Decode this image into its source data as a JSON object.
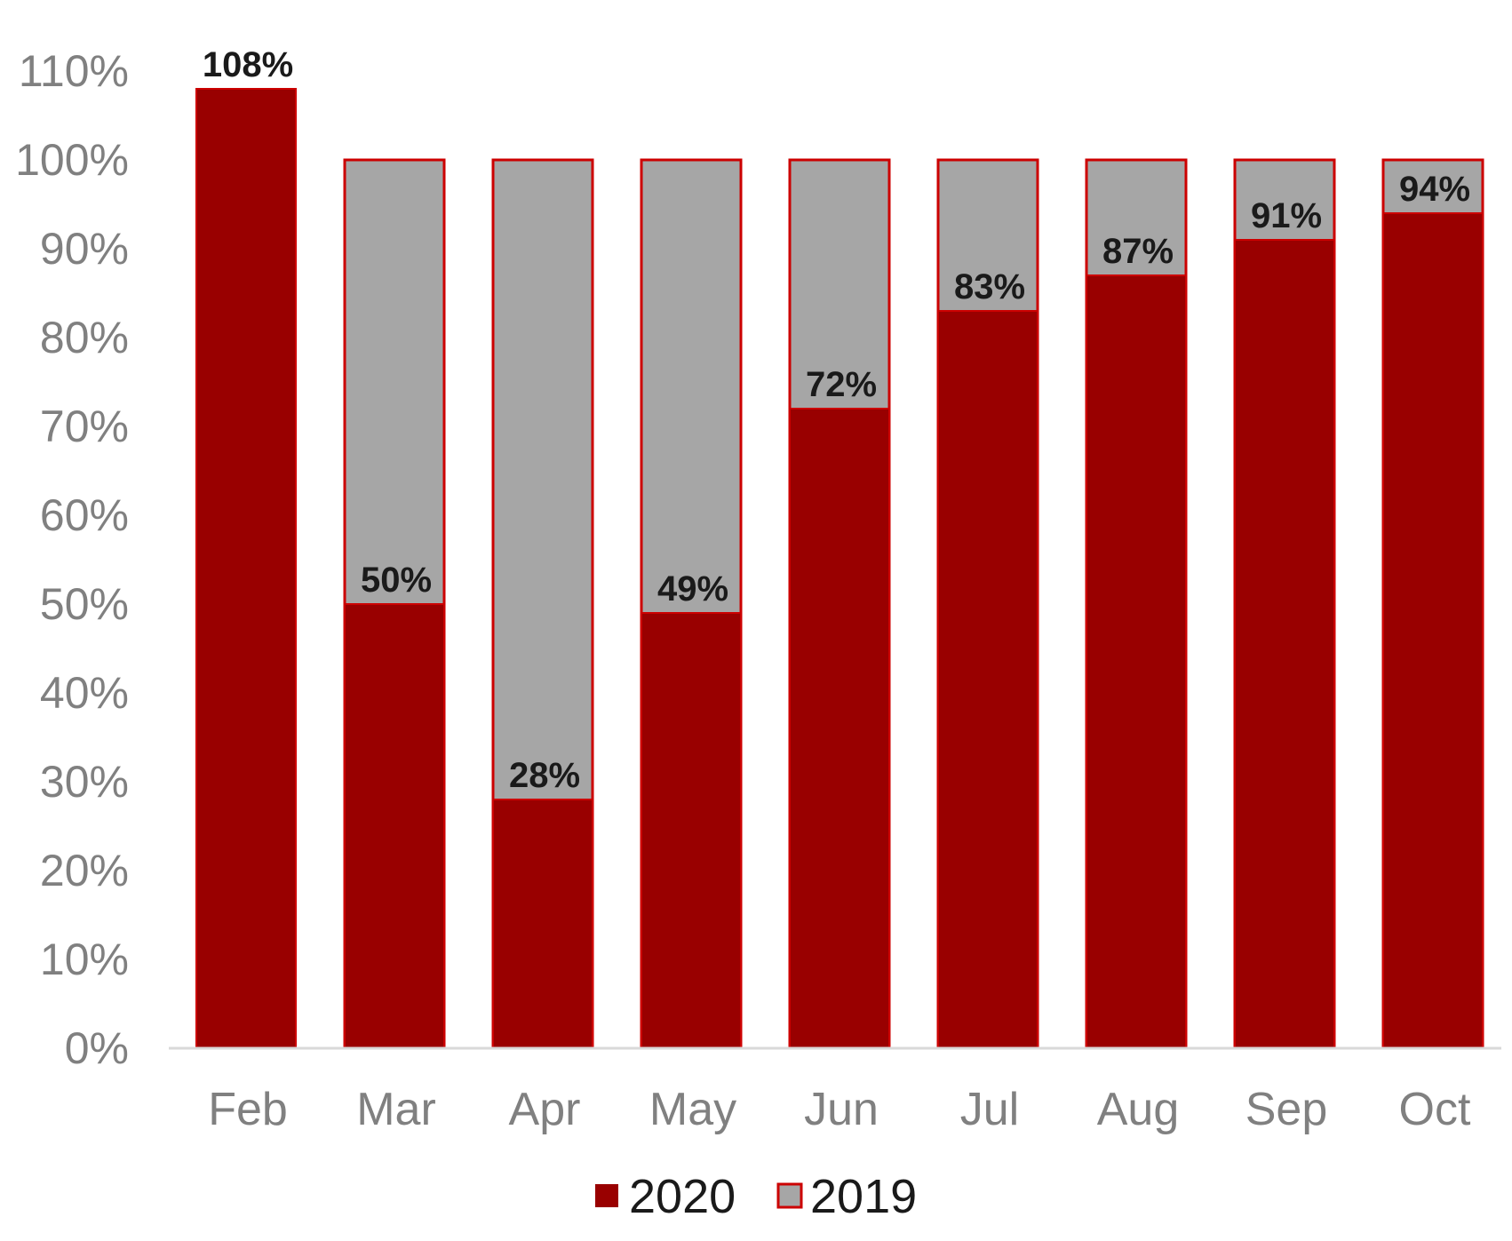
{
  "chart_data": {
    "type": "bar",
    "title": "",
    "xlabel": "",
    "ylabel": "",
    "categories": [
      "Feb",
      "Mar",
      "Apr",
      "May",
      "Jun",
      "Jul",
      "Aug",
      "Sep",
      "Oct"
    ],
    "series": [
      {
        "name": "2020",
        "color": "#990000",
        "values": [
          108,
          50,
          28,
          49,
          72,
          83,
          87,
          91,
          94
        ],
        "labels": [
          "108%",
          "50%",
          "28%",
          "49%",
          "72%",
          "83%",
          "87%",
          "91%",
          "94%"
        ]
      },
      {
        "name": "2019",
        "color": "#a6a6a6",
        "border_color": "#cc0000",
        "values": [
          null,
          100,
          100,
          100,
          100,
          100,
          100,
          100,
          100
        ]
      }
    ],
    "ylim": [
      0,
      110
    ],
    "yticks": [
      "0%",
      "10%",
      "20%",
      "30%",
      "40%",
      "50%",
      "60%",
      "70%",
      "80%",
      "90%",
      "100%",
      "110%"
    ],
    "yticks_values": [
      0,
      10,
      20,
      30,
      40,
      50,
      60,
      70,
      80,
      90,
      100,
      110
    ],
    "grid": false,
    "legend_position": "bottom-center"
  }
}
